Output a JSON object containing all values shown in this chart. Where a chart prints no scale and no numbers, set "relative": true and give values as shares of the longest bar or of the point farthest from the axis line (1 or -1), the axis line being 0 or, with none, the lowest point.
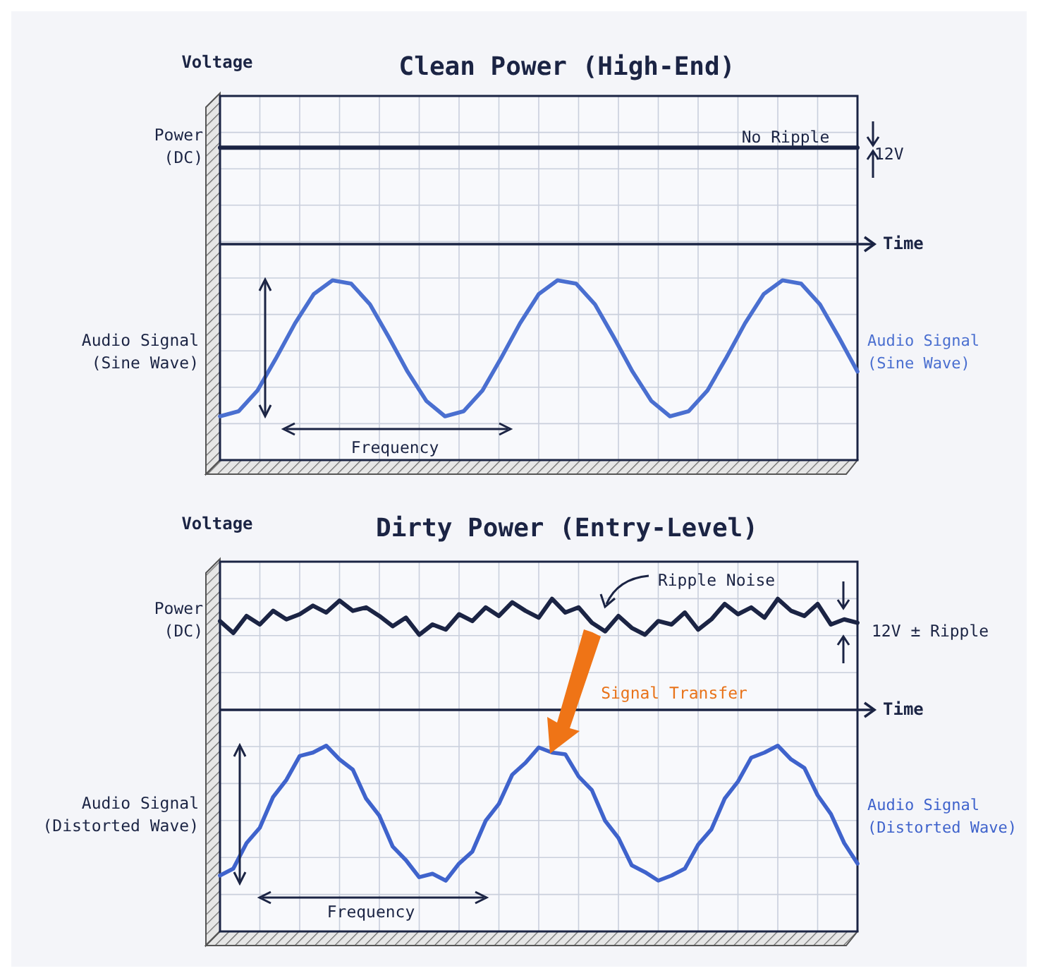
{
  "chart_data": [
    {
      "type": "line",
      "title": "Clean Power (High-End)",
      "ylabel": "Voltage",
      "xlabel": "Time",
      "relative": true,
      "grid": true,
      "marker": "none",
      "line_style": "solid",
      "categories": [
        null,
        null,
        null,
        null,
        null,
        null,
        null,
        null,
        null,
        null,
        null,
        null,
        null,
        null,
        null,
        null,
        null,
        null,
        null,
        null,
        null,
        null,
        null,
        null,
        null,
        null,
        null,
        null,
        null,
        null,
        null,
        null,
        null,
        null,
        null
      ],
      "series": [
        {
          "name": "Power (DC)",
          "color": "#1b2444",
          "values": [
            0.56,
            0.56,
            0.56,
            0.56,
            0.56,
            0.56,
            0.56,
            0.56,
            0.56,
            0.56,
            0.56,
            0.56,
            0.56,
            0.56,
            0.56,
            0.56,
            0.56,
            0.56,
            0.56,
            0.56,
            0.56,
            0.56,
            0.56,
            0.56,
            0.56,
            0.56,
            0.56,
            0.56,
            0.56,
            0.56,
            0.56,
            0.56,
            0.56,
            0.56,
            0.56
          ]
        },
        {
          "name": "Audio Signal (Sine Wave)",
          "color": "#4a6fd0",
          "values": [
            -1,
            -0.97,
            -0.85,
            -0.66,
            -0.46,
            -0.29,
            -0.21,
            -0.23,
            -0.35,
            -0.54,
            -0.74,
            -0.91,
            -1,
            -0.97,
            -0.85,
            -0.66,
            -0.46,
            -0.29,
            -0.21,
            -0.23,
            -0.35,
            -0.54,
            -0.74,
            -0.91,
            -1,
            -0.97,
            -0.85,
            -0.66,
            -0.46,
            -0.29,
            -0.21,
            -0.23,
            -0.35,
            -0.54,
            -0.74
          ]
        }
      ],
      "annotations": [
        "No Ripple",
        "12V",
        "Audio Signal (Sine Wave)",
        "Frequency"
      ]
    },
    {
      "type": "line",
      "title": "Dirty Power (Entry-Level)",
      "ylabel": "Voltage",
      "xlabel": "Time",
      "relative": true,
      "grid": true,
      "marker": "none",
      "line_style": "solid",
      "categories": [
        null,
        null,
        null,
        null,
        null,
        null,
        null,
        null,
        null,
        null,
        null,
        null,
        null,
        null,
        null,
        null,
        null,
        null,
        null,
        null,
        null,
        null,
        null,
        null,
        null,
        null,
        null,
        null,
        null,
        null,
        null,
        null,
        null,
        null,
        null,
        null,
        null,
        null,
        null,
        null,
        null,
        null,
        null,
        null,
        null,
        null,
        null,
        null,
        null
      ],
      "series": [
        {
          "name": "Power (DC)",
          "color": "#1b2444",
          "values": [
            0.52,
            0.45,
            0.55,
            0.5,
            0.58,
            0.53,
            0.56,
            0.61,
            0.57,
            0.64,
            0.58,
            0.6,
            0.55,
            0.49,
            0.54,
            0.44,
            0.5,
            0.47,
            0.56,
            0.52,
            0.6,
            0.55,
            0.63,
            0.58,
            0.54,
            0.65,
            0.57,
            0.6,
            0.51,
            0.46,
            0.55,
            0.48,
            0.44,
            0.52,
            0.5,
            0.57,
            0.47,
            0.53,
            0.62,
            0.56,
            0.6,
            0.54,
            0.65,
            0.58,
            0.55,
            0.62,
            0.5,
            0.53,
            0.51
          ]
        },
        {
          "name": "Audio Signal (Distorted Wave)",
          "color": "#3f63cc",
          "values": [
            -0.97,
            -0.93,
            -0.78,
            -0.69,
            -0.51,
            -0.41,
            -0.27,
            -0.25,
            -0.21,
            -0.29,
            -0.35,
            -0.52,
            -0.62,
            -0.8,
            -0.88,
            -0.98,
            -0.96,
            -1,
            -0.9,
            -0.83,
            -0.65,
            -0.55,
            -0.38,
            -0.31,
            -0.22,
            -0.25,
            -0.26,
            -0.39,
            -0.47,
            -0.65,
            -0.75,
            -0.91,
            -0.95,
            -1,
            -0.97,
            -0.93,
            -0.79,
            -0.7,
            -0.52,
            -0.42,
            -0.28,
            -0.25,
            -0.21,
            -0.29,
            -0.34,
            -0.5,
            -0.61,
            -0.78,
            -0.9
          ]
        }
      ],
      "annotations": [
        "Ripple Noise",
        "12V ± Ripple",
        "Signal Transfer",
        "Audio Signal (Distorted Wave)",
        "Frequency"
      ]
    }
  ]
}
